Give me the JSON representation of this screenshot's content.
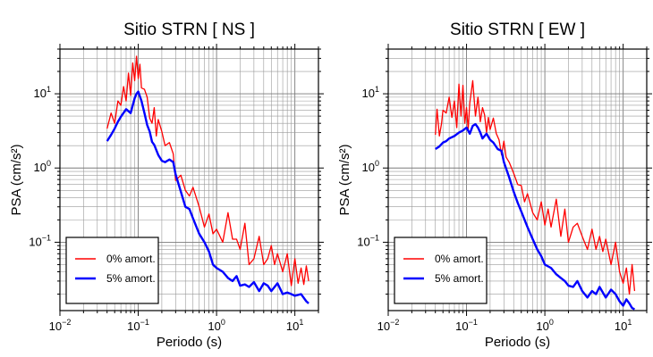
{
  "chart_data": [
    {
      "type": "line",
      "title": "Sitio STRN [ NS ]",
      "xlabel": "Periodo (s)",
      "ylabel": "PSA (cm/s²)",
      "xscale": "log",
      "yscale": "log",
      "xlim": [
        0.01,
        20
      ],
      "ylim": [
        0.012,
        40
      ],
      "x_ticks": [
        {
          "base": "10",
          "exp": "−2"
        },
        {
          "base": "10",
          "exp": "−1"
        },
        {
          "base": "10",
          "exp": "0"
        },
        {
          "base": "10",
          "exp": "1"
        }
      ],
      "y_ticks": [
        {
          "base": "10",
          "exp": "−1"
        },
        {
          "base": "10",
          "exp": "0"
        },
        {
          "base": "10",
          "exp": "1"
        }
      ],
      "grid": true,
      "legend_position": "bottom-left",
      "series": [
        {
          "name": "0% amort.",
          "color": "#ff0000",
          "x": [
            0.04,
            0.045,
            0.05,
            0.055,
            0.06,
            0.065,
            0.07,
            0.075,
            0.08,
            0.085,
            0.09,
            0.095,
            0.1,
            0.105,
            0.11,
            0.12,
            0.13,
            0.14,
            0.15,
            0.16,
            0.17,
            0.18,
            0.2,
            0.22,
            0.25,
            0.28,
            0.3,
            0.35,
            0.4,
            0.45,
            0.5,
            0.6,
            0.7,
            0.8,
            0.9,
            1.0,
            1.2,
            1.4,
            1.6,
            1.8,
            2.0,
            2.3,
            2.6,
            3.0,
            3.5,
            4.0,
            4.5,
            5.0,
            5.5,
            6.0,
            7.0,
            8.0,
            9.0,
            10.0,
            11.0,
            12.0,
            13.0,
            14.0,
            15.0
          ],
          "y": [
            3.4,
            5.5,
            4.0,
            8.0,
            7.0,
            12.5,
            8.0,
            19.0,
            9.5,
            26.0,
            15.0,
            32.0,
            16.0,
            25.0,
            12.0,
            11.5,
            9.0,
            4.7,
            4.0,
            6.5,
            2.7,
            4.5,
            3.1,
            2.0,
            2.2,
            1.55,
            0.68,
            0.8,
            0.5,
            0.42,
            0.55,
            0.3,
            0.16,
            0.24,
            0.13,
            0.15,
            0.1,
            0.25,
            0.11,
            0.11,
            0.08,
            0.18,
            0.05,
            0.06,
            0.12,
            0.05,
            0.06,
            0.09,
            0.05,
            0.07,
            0.04,
            0.07,
            0.026,
            0.06,
            0.028,
            0.045,
            0.027,
            0.048,
            0.03
          ]
        },
        {
          "name": "5% amort.",
          "color": "#0000ff",
          "x": [
            0.04,
            0.045,
            0.05,
            0.055,
            0.06,
            0.07,
            0.08,
            0.09,
            0.095,
            0.1,
            0.11,
            0.12,
            0.13,
            0.14,
            0.15,
            0.16,
            0.18,
            0.2,
            0.22,
            0.25,
            0.28,
            0.3,
            0.35,
            0.4,
            0.45,
            0.5,
            0.6,
            0.7,
            0.8,
            0.9,
            1.0,
            1.2,
            1.4,
            1.6,
            1.8,
            2.0,
            2.3,
            2.6,
            3.0,
            3.5,
            4.0,
            4.5,
            5.0,
            6.0,
            7.0,
            8.0,
            9.0,
            10.0,
            12.0,
            14.0,
            15.0
          ],
          "y": [
            2.3,
            2.8,
            3.4,
            4.2,
            4.9,
            6.2,
            5.5,
            8.7,
            10.0,
            10.7,
            8.0,
            5.5,
            3.8,
            3.1,
            2.25,
            2.05,
            1.5,
            1.25,
            1.2,
            1.3,
            1.2,
            0.82,
            0.48,
            0.3,
            0.28,
            0.21,
            0.13,
            0.1,
            0.075,
            0.05,
            0.045,
            0.04,
            0.033,
            0.03,
            0.035,
            0.026,
            0.027,
            0.025,
            0.029,
            0.022,
            0.028,
            0.026,
            0.022,
            0.028,
            0.02,
            0.021,
            0.02,
            0.019,
            0.02,
            0.016,
            0.015
          ]
        }
      ]
    },
    {
      "type": "line",
      "title": "Sitio STRN [ EW ]",
      "xlabel": "Periodo (s)",
      "ylabel": "PSA (cm/s²)",
      "xscale": "log",
      "yscale": "log",
      "xlim": [
        0.01,
        20
      ],
      "ylim": [
        0.012,
        40
      ],
      "x_ticks": [
        {
          "base": "10",
          "exp": "−2"
        },
        {
          "base": "10",
          "exp": "−1"
        },
        {
          "base": "10",
          "exp": "0"
        },
        {
          "base": "10",
          "exp": "1"
        }
      ],
      "y_ticks": [
        {
          "base": "10",
          "exp": "−1"
        },
        {
          "base": "10",
          "exp": "0"
        },
        {
          "base": "10",
          "exp": "1"
        }
      ],
      "grid": true,
      "legend_position": "bottom-left",
      "series": [
        {
          "name": "0% amort.",
          "color": "#ff0000",
          "x": [
            0.04,
            0.042,
            0.045,
            0.048,
            0.05,
            0.055,
            0.06,
            0.065,
            0.07,
            0.075,
            0.08,
            0.085,
            0.09,
            0.095,
            0.1,
            0.105,
            0.11,
            0.12,
            0.13,
            0.14,
            0.15,
            0.16,
            0.17,
            0.18,
            0.19,
            0.2,
            0.22,
            0.24,
            0.26,
            0.28,
            0.3,
            0.32,
            0.35,
            0.4,
            0.45,
            0.5,
            0.55,
            0.6,
            0.7,
            0.8,
            0.9,
            1.0,
            1.1,
            1.2,
            1.4,
            1.6,
            1.8,
            2.0,
            2.3,
            2.6,
            3.0,
            3.5,
            4.0,
            4.5,
            5.0,
            5.5,
            6.0,
            7.0,
            8.0,
            9.0,
            10.0,
            11.0,
            12.0,
            13.0,
            14.0
          ],
          "y": [
            2.8,
            6.2,
            2.7,
            4.0,
            6.0,
            5.5,
            9.0,
            4.8,
            8.0,
            3.5,
            13.5,
            5.0,
            13.0,
            4.0,
            6.5,
            3.3,
            7.5,
            15.0,
            5.0,
            9.0,
            4.2,
            6.5,
            5.2,
            3.0,
            4.8,
            3.3,
            4.7,
            2.9,
            2.4,
            1.5,
            2.3,
            1.4,
            1.2,
            0.85,
            0.6,
            0.58,
            0.35,
            0.45,
            0.25,
            0.2,
            0.35,
            0.17,
            0.28,
            0.16,
            0.38,
            0.12,
            0.28,
            0.1,
            0.16,
            0.18,
            0.12,
            0.08,
            0.15,
            0.08,
            0.12,
            0.075,
            0.11,
            0.05,
            0.1,
            0.04,
            0.028,
            0.045,
            0.02,
            0.05,
            0.022
          ]
        },
        {
          "name": "5% amort.",
          "color": "#0000ff",
          "x": [
            0.04,
            0.045,
            0.05,
            0.055,
            0.06,
            0.07,
            0.08,
            0.09,
            0.1,
            0.11,
            0.12,
            0.13,
            0.14,
            0.15,
            0.16,
            0.18,
            0.2,
            0.22,
            0.25,
            0.28,
            0.3,
            0.35,
            0.4,
            0.45,
            0.5,
            0.6,
            0.7,
            0.8,
            0.9,
            1.0,
            1.2,
            1.4,
            1.6,
            1.8,
            2.0,
            2.3,
            2.6,
            3.0,
            3.5,
            4.0,
            4.5,
            5.0,
            6.0,
            7.0,
            8.0,
            9.0,
            10.0,
            11.0,
            12.0,
            13.0,
            14.0
          ],
          "y": [
            1.8,
            1.95,
            2.2,
            2.3,
            2.5,
            2.7,
            3.0,
            3.2,
            3.5,
            2.9,
            3.7,
            3.9,
            3.5,
            3.0,
            2.5,
            2.9,
            2.4,
            2.2,
            1.8,
            1.7,
            1.2,
            0.75,
            0.48,
            0.34,
            0.26,
            0.16,
            0.11,
            0.08,
            0.065,
            0.05,
            0.045,
            0.037,
            0.033,
            0.03,
            0.026,
            0.025,
            0.03,
            0.022,
            0.018,
            0.022,
            0.02,
            0.025,
            0.018,
            0.023,
            0.02,
            0.016,
            0.014,
            0.017,
            0.015,
            0.013,
            0.0125
          ]
        }
      ]
    }
  ]
}
